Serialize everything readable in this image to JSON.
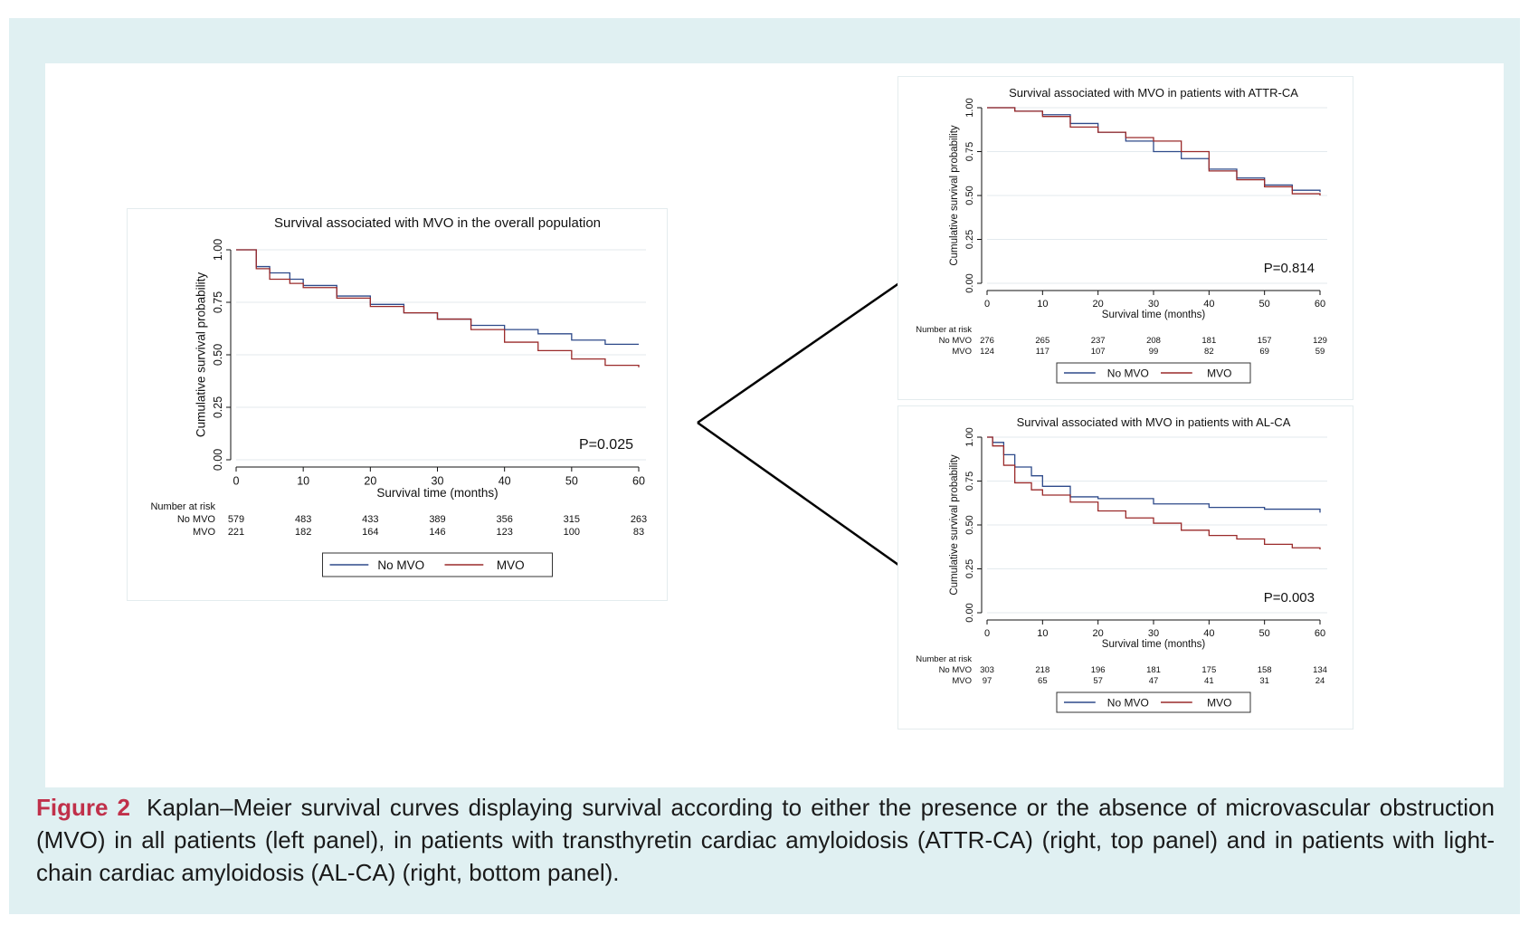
{
  "colors": {
    "frame_bg": "#e0f0f2",
    "no_mvo": "#2e4a8a",
    "mvo": "#9a2a2a",
    "caption_label": "#c0304a",
    "grid": "#e3eaee"
  },
  "caption": {
    "label": "Figure 2",
    "text": "Kaplan–Meier survival curves displaying survival according to either the presence or the absence of microvascular obstruction (MVO) in all patients (left panel), in patients with transthyretin cardiac amyloidosis (ATTR-CA) (right, top panel) and in patients with light-chain cardiac amyloidosis (AL-CA) (right, bottom panel)."
  },
  "chart_data": [
    {
      "type": "line",
      "title": "Survival associated with MVO in the overall population",
      "xlabel": "Survival time (months)",
      "ylabel": "Cumulative survival probability",
      "xlim": [
        0,
        60
      ],
      "ylim": [
        0,
        1
      ],
      "xticks": [
        "0",
        "10",
        "20",
        "30",
        "40",
        "50",
        "60"
      ],
      "yticks": [
        "0.00",
        "0.25",
        "0.50",
        "0.75",
        "1.00"
      ],
      "grid": true,
      "annotation": "P=0.025",
      "legend": [
        "No MVO",
        "MVO"
      ],
      "legend_position": "bottom",
      "series": [
        {
          "name": "No MVO",
          "x": [
            0,
            3,
            5,
            8,
            10,
            15,
            20,
            25,
            30,
            35,
            40,
            45,
            50,
            55,
            60
          ],
          "values": [
            1.0,
            0.92,
            0.89,
            0.86,
            0.83,
            0.78,
            0.74,
            0.7,
            0.67,
            0.64,
            0.62,
            0.6,
            0.57,
            0.55,
            0.55
          ]
        },
        {
          "name": "MVO",
          "x": [
            0,
            3,
            5,
            8,
            10,
            15,
            20,
            25,
            30,
            35,
            40,
            45,
            50,
            55,
            60
          ],
          "values": [
            1.0,
            0.91,
            0.86,
            0.84,
            0.82,
            0.77,
            0.73,
            0.7,
            0.67,
            0.62,
            0.56,
            0.52,
            0.48,
            0.45,
            0.44
          ]
        }
      ],
      "risk_table": {
        "header": "Number at risk",
        "rows": [
          {
            "name": "No MVO",
            "values": [
              "579",
              "483",
              "433",
              "389",
              "356",
              "315",
              "263"
            ]
          },
          {
            "name": "MVO",
            "values": [
              "221",
              "182",
              "164",
              "146",
              "123",
              "100",
              "83"
            ]
          }
        ]
      }
    },
    {
      "type": "line",
      "title": "Survival associated with MVO in patients with ATTR-CA",
      "xlabel": "Survival time (months)",
      "ylabel": "Cumulative survival probability",
      "xlim": [
        0,
        60
      ],
      "ylim": [
        0,
        1
      ],
      "xticks": [
        "0",
        "10",
        "20",
        "30",
        "40",
        "50",
        "60"
      ],
      "yticks": [
        "0.00",
        "0.25",
        "0.50",
        "0.75",
        "1.00"
      ],
      "grid": true,
      "annotation": "P=0.814",
      "legend": [
        "No MVO",
        "MVO"
      ],
      "legend_position": "bottom",
      "series": [
        {
          "name": "No MVO",
          "x": [
            0,
            5,
            10,
            15,
            20,
            25,
            30,
            35,
            40,
            45,
            50,
            55,
            60
          ],
          "values": [
            1.0,
            0.98,
            0.96,
            0.91,
            0.86,
            0.81,
            0.75,
            0.71,
            0.65,
            0.6,
            0.56,
            0.53,
            0.52
          ]
        },
        {
          "name": "MVO",
          "x": [
            0,
            5,
            10,
            15,
            20,
            25,
            30,
            35,
            40,
            45,
            50,
            55,
            60
          ],
          "values": [
            1.0,
            0.98,
            0.95,
            0.89,
            0.86,
            0.83,
            0.81,
            0.75,
            0.64,
            0.59,
            0.55,
            0.51,
            0.5
          ]
        }
      ],
      "risk_table": {
        "header": "Number at risk",
        "rows": [
          {
            "name": "No MVO",
            "values": [
              "276",
              "265",
              "237",
              "208",
              "181",
              "157",
              "129"
            ]
          },
          {
            "name": "MVO",
            "values": [
              "124",
              "117",
              "107",
              "99",
              "82",
              "69",
              "59"
            ]
          }
        ]
      }
    },
    {
      "type": "line",
      "title": "Survival associated with MVO in patients with AL-CA",
      "xlabel": "Survival time (months)",
      "ylabel": "Cumulative survival probability",
      "xlim": [
        0,
        60
      ],
      "ylim": [
        0,
        1
      ],
      "xticks": [
        "0",
        "10",
        "20",
        "30",
        "40",
        "50",
        "60"
      ],
      "yticks": [
        "0.00",
        "0.25",
        "0.50",
        "0.75",
        "1.00"
      ],
      "grid": true,
      "annotation": "P=0.003",
      "legend": [
        "No MVO",
        "MVO"
      ],
      "legend_position": "bottom",
      "series": [
        {
          "name": "No MVO",
          "x": [
            0,
            1,
            3,
            5,
            8,
            10,
            15,
            20,
            30,
            40,
            50,
            60
          ],
          "values": [
            1.0,
            0.97,
            0.9,
            0.83,
            0.78,
            0.72,
            0.66,
            0.65,
            0.62,
            0.6,
            0.59,
            0.57
          ]
        },
        {
          "name": "MVO",
          "x": [
            0,
            1,
            3,
            5,
            8,
            10,
            15,
            20,
            25,
            30,
            35,
            40,
            45,
            50,
            55,
            60
          ],
          "values": [
            1.0,
            0.95,
            0.84,
            0.74,
            0.7,
            0.67,
            0.63,
            0.58,
            0.54,
            0.51,
            0.47,
            0.44,
            0.42,
            0.39,
            0.37,
            0.36
          ]
        }
      ],
      "risk_table": {
        "header": "Number at risk",
        "rows": [
          {
            "name": "No MVO",
            "values": [
              "303",
              "218",
              "196",
              "181",
              "175",
              "158",
              "134"
            ]
          },
          {
            "name": "MVO",
            "values": [
              "97",
              "65",
              "57",
              "47",
              "41",
              "31",
              "24"
            ]
          }
        ]
      }
    }
  ]
}
